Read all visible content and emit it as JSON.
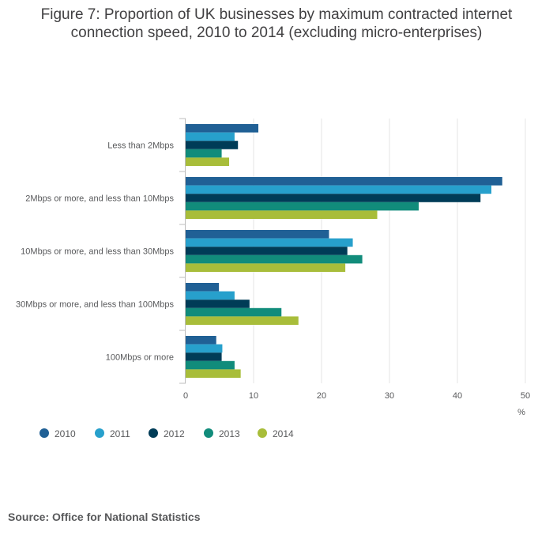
{
  "title_lines": [
    "Figure 7: Proportion of UK businesses by maximum contracted internet",
    "connection speed, 2010 to 2014 (excluding micro-enterprises)"
  ],
  "source": "Source: Office for National Statistics",
  "chart_data": {
    "type": "bar",
    "orientation": "horizontal",
    "categories": [
      "Less than 2Mbps",
      "2Mbps or more, and less than 10Mbps",
      "10Mbps or more, and less than 30Mbps",
      "30Mbps or more, and less than 100Mbps",
      "100Mbps or more"
    ],
    "series": [
      {
        "name": "2010",
        "color": "#206095",
        "values": [
          10.7,
          46.6,
          21.1,
          4.9,
          4.5
        ]
      },
      {
        "name": "2011",
        "color": "#27a0cc",
        "values": [
          7.2,
          45.0,
          24.6,
          7.2,
          5.4
        ]
      },
      {
        "name": "2012",
        "color": "#003c57",
        "values": [
          7.7,
          43.4,
          23.8,
          9.4,
          5.3
        ]
      },
      {
        "name": "2013",
        "color": "#118c7b",
        "values": [
          5.3,
          34.3,
          26.0,
          14.1,
          7.2
        ]
      },
      {
        "name": "2014",
        "color": "#a8bd3a",
        "values": [
          6.4,
          28.2,
          23.5,
          16.6,
          8.1
        ]
      }
    ],
    "xlabel": "%",
    "xlim": [
      0,
      50
    ],
    "xticks": [
      0,
      10,
      20,
      30,
      40,
      50
    ],
    "grid": true,
    "legend_position": "bottom-left"
  }
}
